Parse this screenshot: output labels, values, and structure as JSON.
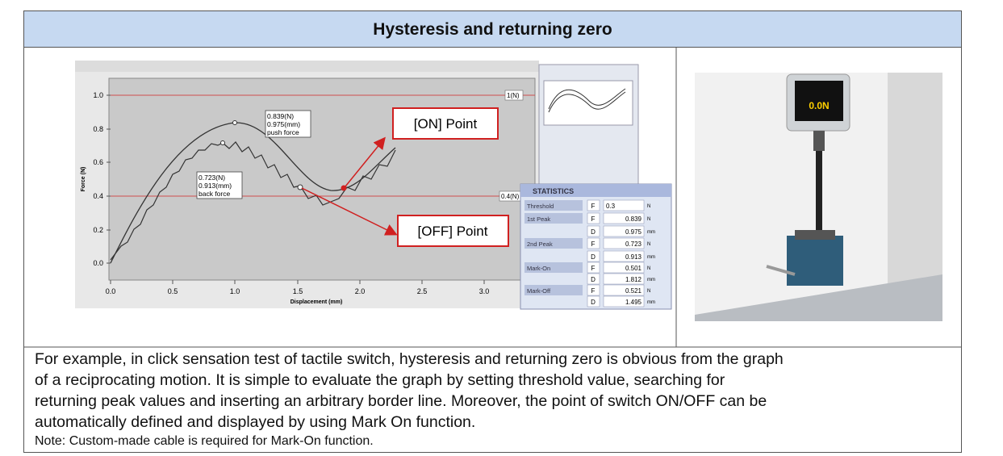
{
  "header": {
    "title": "Hysteresis and returning zero"
  },
  "graph": {
    "y_axis_label": "Force (N)",
    "x_axis_label": "Displacement (mm)",
    "y_ticks": [
      "1.0",
      "0.8",
      "0.6",
      "0.4",
      "0.2",
      "0.0"
    ],
    "x_ticks": [
      "0.0",
      "0.5",
      "1.0",
      "1.5",
      "2.0",
      "2.5",
      "3.0"
    ],
    "line_labels": [
      "1(N)",
      "0.4(N)"
    ],
    "push_annotation": [
      "0.839(N)",
      "0.975(mm)",
      "push force"
    ],
    "back_annotation": [
      "0.723(N)",
      "0.913(mm)",
      "back force"
    ],
    "on_callout": "[ON] Point",
    "off_callout": "[OFF] Point"
  },
  "statistics": {
    "title": "STATISTICS",
    "rows": [
      {
        "label": "Threshold",
        "code": "F",
        "value": "0.3",
        "unit": "N"
      },
      {
        "label": "1st Peak",
        "code": "F",
        "value": "0.839",
        "unit": "N"
      },
      {
        "label": "",
        "code": "D",
        "value": "0.975",
        "unit": "mm"
      },
      {
        "label": "2nd Peak",
        "code": "F",
        "value": "0.723",
        "unit": "N"
      },
      {
        "label": "",
        "code": "D",
        "value": "0.913",
        "unit": "mm"
      },
      {
        "label": "Mark-On",
        "code": "F",
        "value": "0.501",
        "unit": "N"
      },
      {
        "label": "",
        "code": "D",
        "value": "1.812",
        "unit": "mm"
      },
      {
        "label": "Mark-Off",
        "code": "F",
        "value": "0.521",
        "unit": "N"
      },
      {
        "label": "",
        "code": "D",
        "value": "1.495",
        "unit": "mm"
      }
    ]
  },
  "body": {
    "paragraph": [
      "For example, in click sensation test of tactile switch, hysteresis and returning zero is obvious from the graph",
      "of a reciprocating motion. It is simple to evaluate the graph by setting threshold value, searching for",
      "returning peak values and inserting an arbitrary border line. Moreover, the point of switch ON/OFF can be",
      "automatically defined and displayed by using Mark On function."
    ],
    "note": "Note: Custom-made cable is required for Mark-On function."
  }
}
